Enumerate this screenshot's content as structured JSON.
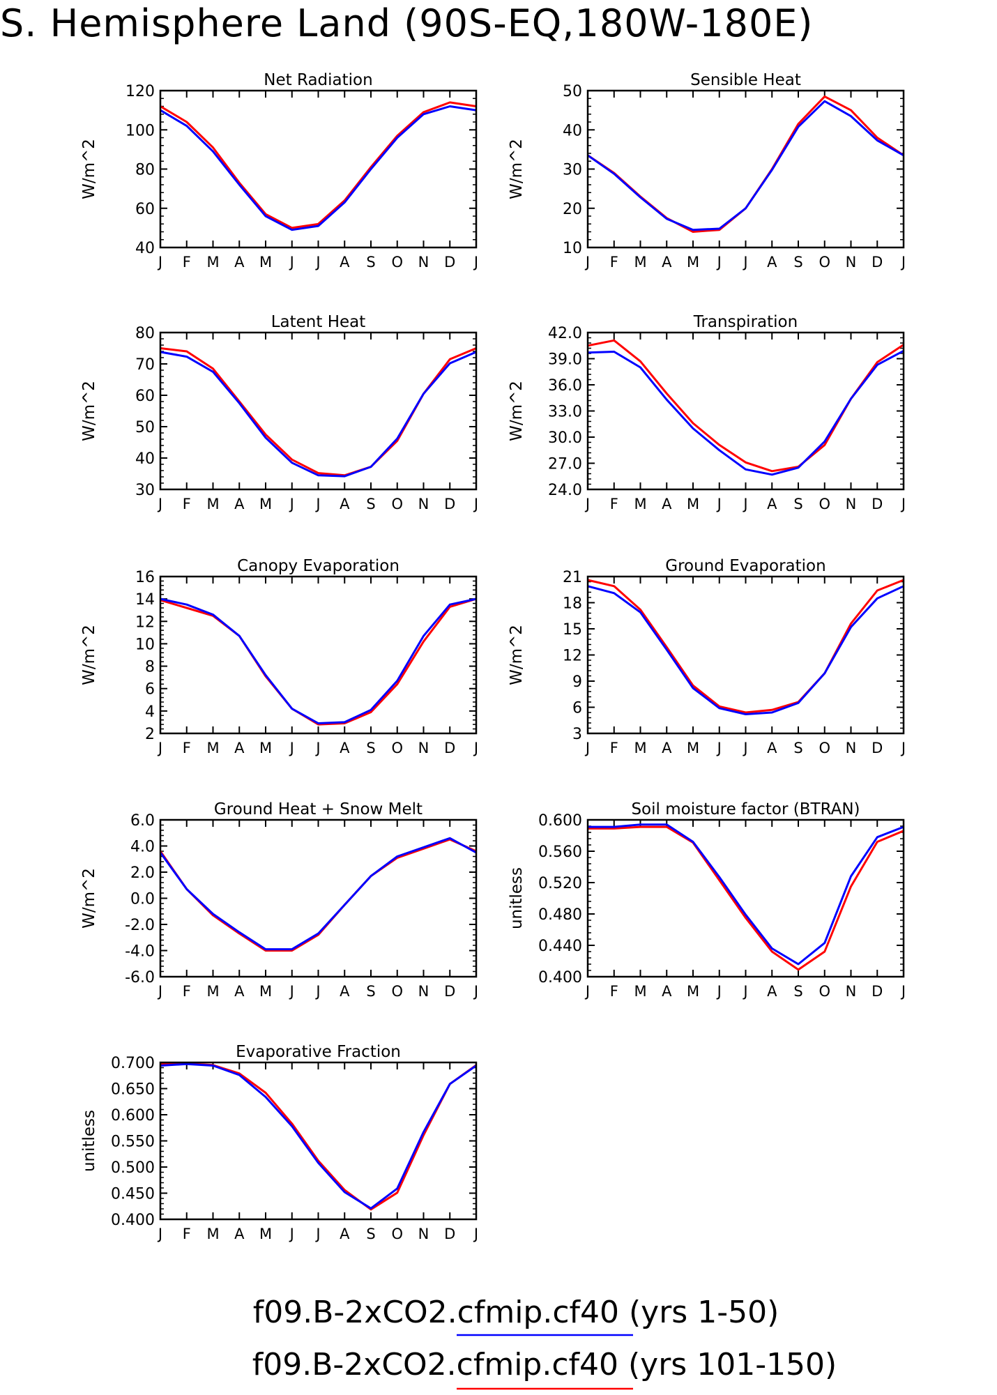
{
  "figure": {
    "title": "S. Hemisphere Land (90S-EQ,180W-180E)",
    "legend": [
      {
        "label": "f09.B-2xCO2.cfmip.cf40 (yrs 1-50)",
        "color": "#0000ff"
      },
      {
        "label": "f09.B-2xCO2.cfmip.cf40 (yrs 101-150)",
        "color": "#ff0000"
      }
    ]
  },
  "chart_data": [
    {
      "type": "line",
      "title": "Net Radiation",
      "ylabel": "W/m^2",
      "categories": [
        "J",
        "F",
        "M",
        "A",
        "M",
        "J",
        "J",
        "A",
        "S",
        "O",
        "N",
        "D",
        "J"
      ],
      "ylim": [
        40,
        120
      ],
      "yticks": [
        "40",
        "60",
        "80",
        "100",
        "120"
      ],
      "series": [
        {
          "color": "#ff0000",
          "values": [
            112,
            104,
            91,
            73,
            57,
            50,
            52,
            64,
            81,
            97,
            109,
            114,
            112
          ]
        },
        {
          "color": "#0000ff",
          "values": [
            110,
            102,
            89,
            72,
            56,
            49,
            51,
            63,
            80,
            96,
            108,
            112,
            110
          ]
        }
      ]
    },
    {
      "type": "line",
      "title": "Sensible Heat",
      "ylabel": "W/m^2",
      "categories": [
        "J",
        "F",
        "M",
        "A",
        "M",
        "J",
        "J",
        "A",
        "S",
        "O",
        "N",
        "D",
        "J"
      ],
      "ylim": [
        10,
        50
      ],
      "yticks": [
        "10",
        "20",
        "30",
        "40",
        "50"
      ],
      "series": [
        {
          "color": "#ff0000",
          "values": [
            33.5,
            29,
            23,
            17.5,
            14,
            14.5,
            20,
            30,
            41.5,
            48.5,
            45,
            38,
            33.5
          ]
        },
        {
          "color": "#0000ff",
          "values": [
            33.5,
            28.8,
            22.8,
            17.3,
            14.5,
            14.8,
            20,
            29.8,
            40.8,
            47.3,
            43.5,
            37.3,
            33.5
          ]
        }
      ]
    },
    {
      "type": "line",
      "title": "Latent Heat",
      "ylabel": "W/m^2",
      "categories": [
        "J",
        "F",
        "M",
        "A",
        "M",
        "J",
        "J",
        "A",
        "S",
        "O",
        "N",
        "D",
        "J"
      ],
      "ylim": [
        30,
        80
      ],
      "yticks": [
        "30",
        "40",
        "50",
        "60",
        "70",
        "80"
      ],
      "series": [
        {
          "color": "#ff0000",
          "values": [
            75,
            74,
            68.5,
            58,
            47.5,
            39.5,
            35.2,
            34.5,
            37.2,
            45.5,
            60.5,
            71.5,
            75
          ]
        },
        {
          "color": "#0000ff",
          "values": [
            73.8,
            72.3,
            67.5,
            57.5,
            46.5,
            38.5,
            34.5,
            34.2,
            37.2,
            46.2,
            60.5,
            70.2,
            73.8
          ]
        }
      ]
    },
    {
      "type": "line",
      "title": "Transpiration",
      "ylabel": "W/m^2",
      "categories": [
        "J",
        "F",
        "M",
        "A",
        "M",
        "J",
        "J",
        "A",
        "S",
        "O",
        "N",
        "D",
        "J"
      ],
      "ylim": [
        24,
        42
      ],
      "yticks": [
        "24.0",
        "27.0",
        "30.0",
        "33.0",
        "36.0",
        "39.0",
        "42.0"
      ],
      "series": [
        {
          "color": "#ff0000",
          "values": [
            40.5,
            41.1,
            38.7,
            35,
            31.6,
            29.1,
            27.1,
            26.1,
            26.6,
            29.1,
            34.4,
            38.6,
            40.6
          ]
        },
        {
          "color": "#0000ff",
          "values": [
            39.7,
            39.8,
            38,
            34.3,
            31,
            28.5,
            26.3,
            25.7,
            26.5,
            29.5,
            34.4,
            38.3,
            39.9
          ]
        }
      ]
    },
    {
      "type": "line",
      "title": "Canopy Evaporation",
      "ylabel": "W/m^2",
      "categories": [
        "J",
        "F",
        "M",
        "A",
        "M",
        "J",
        "J",
        "A",
        "S",
        "O",
        "N",
        "D",
        "J"
      ],
      "ylim": [
        2,
        16
      ],
      "yticks": [
        "2",
        "4",
        "6",
        "8",
        "10",
        "12",
        "14",
        "16"
      ],
      "series": [
        {
          "color": "#ff0000",
          "values": [
            13.9,
            13.2,
            12.5,
            10.7,
            7.1,
            4.2,
            2.8,
            2.9,
            3.9,
            6.4,
            10.2,
            13.3,
            14
          ]
        },
        {
          "color": "#0000ff",
          "values": [
            14,
            13.5,
            12.6,
            10.7,
            7.2,
            4.2,
            2.9,
            3,
            4.1,
            6.7,
            10.7,
            13.5,
            14
          ]
        }
      ]
    },
    {
      "type": "line",
      "title": "Ground Evaporation",
      "ylabel": "W/m^2",
      "categories": [
        "J",
        "F",
        "M",
        "A",
        "M",
        "J",
        "J",
        "A",
        "S",
        "O",
        "N",
        "D",
        "J"
      ],
      "ylim": [
        3,
        21
      ],
      "yticks": [
        "3",
        "6",
        "9",
        "12",
        "15",
        "18",
        "21"
      ],
      "series": [
        {
          "color": "#ff0000",
          "values": [
            20.6,
            19.9,
            17.2,
            12.9,
            8.5,
            6.1,
            5.4,
            5.7,
            6.6,
            9.9,
            15.6,
            19.4,
            20.6
          ]
        },
        {
          "color": "#0000ff",
          "values": [
            19.9,
            19.1,
            16.9,
            12.6,
            8.2,
            5.9,
            5.2,
            5.4,
            6.5,
            9.9,
            15.2,
            18.5,
            19.9
          ]
        }
      ]
    },
    {
      "type": "line",
      "title": "Ground Heat + Snow Melt",
      "ylabel": "W/m^2",
      "categories": [
        "J",
        "F",
        "M",
        "A",
        "M",
        "J",
        "J",
        "A",
        "S",
        "O",
        "N",
        "D",
        "J"
      ],
      "ylim": [
        -6,
        6
      ],
      "yticks": [
        "-6.0",
        "-4.0",
        "-2.0",
        "0.0",
        "2.0",
        "4.0",
        "6.0"
      ],
      "series": [
        {
          "color": "#ff0000",
          "values": [
            3.6,
            0.7,
            -1.3,
            -2.7,
            -4.0,
            -4.0,
            -2.8,
            -0.5,
            1.7,
            3.1,
            3.8,
            4.5,
            3.6
          ]
        },
        {
          "color": "#0000ff",
          "values": [
            3.5,
            0.7,
            -1.2,
            -2.6,
            -3.9,
            -3.9,
            -2.7,
            -0.5,
            1.7,
            3.2,
            3.9,
            4.6,
            3.5
          ]
        }
      ]
    },
    {
      "type": "line",
      "title": "Soil moisture factor (BTRAN)",
      "ylabel": "unitless",
      "categories": [
        "J",
        "F",
        "M",
        "A",
        "M",
        "J",
        "J",
        "A",
        "S",
        "O",
        "N",
        "D",
        "J"
      ],
      "ylim": [
        0.4,
        0.6
      ],
      "yticks": [
        "0.400",
        "0.440",
        "0.480",
        "0.520",
        "0.560",
        "0.600"
      ],
      "series": [
        {
          "color": "#ff0000",
          "values": [
            0.589,
            0.589,
            0.591,
            0.591,
            0.571,
            0.523,
            0.475,
            0.432,
            0.409,
            0.432,
            0.515,
            0.572,
            0.586
          ]
        },
        {
          "color": "#0000ff",
          "values": [
            0.591,
            0.591,
            0.594,
            0.594,
            0.572,
            0.527,
            0.479,
            0.436,
            0.416,
            0.443,
            0.528,
            0.578,
            0.591
          ]
        }
      ]
    },
    {
      "type": "line",
      "title": "Evaporative Fraction",
      "ylabel": "unitless",
      "categories": [
        "J",
        "F",
        "M",
        "A",
        "M",
        "J",
        "J",
        "A",
        "S",
        "O",
        "N",
        "D",
        "J"
      ],
      "ylim": [
        0.4,
        0.7
      ],
      "yticks": [
        "0.400",
        "0.450",
        "0.500",
        "0.550",
        "0.600",
        "0.650",
        "0.700"
      ],
      "series": [
        {
          "color": "#ff0000",
          "values": [
            0.697,
            0.698,
            0.695,
            0.679,
            0.642,
            0.583,
            0.512,
            0.456,
            0.419,
            0.451,
            0.561,
            0.659,
            0.695
          ]
        },
        {
          "color": "#0000ff",
          "values": [
            0.694,
            0.697,
            0.694,
            0.676,
            0.634,
            0.578,
            0.508,
            0.452,
            0.421,
            0.459,
            0.567,
            0.659,
            0.694
          ]
        }
      ]
    }
  ]
}
